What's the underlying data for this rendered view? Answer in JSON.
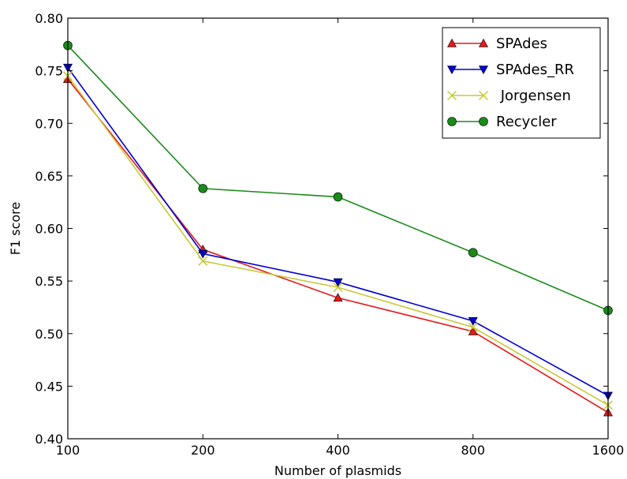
{
  "chart_data": {
    "type": "line",
    "title": "",
    "xlabel": "Number of plasmids",
    "ylabel": "F1 score",
    "x": [
      "100",
      "200",
      "400",
      "800",
      "1600"
    ],
    "ylim": [
      0.4,
      0.8
    ],
    "yticks": [
      "0.40",
      "0.45",
      "0.50",
      "0.55",
      "0.60",
      "0.65",
      "0.70",
      "0.75",
      "0.80"
    ],
    "grid": false,
    "legend_position": "top-right",
    "series": [
      {
        "name": "SPAdes",
        "values": [
          0.742,
          0.58,
          0.534,
          0.502,
          0.425
        ],
        "color": "#e41a1c",
        "marker": "triangle-up"
      },
      {
        "name": "SPAdes_RR",
        "values": [
          0.753,
          0.576,
          0.549,
          0.512,
          0.441
        ],
        "color": "#0000cc",
        "marker": "triangle-down"
      },
      {
        "name": " Jorgensen",
        "values": [
          0.745,
          0.569,
          0.544,
          0.506,
          0.432
        ],
        "color": "#c8c83a",
        "marker": "x"
      },
      {
        "name": "Recycler",
        "values": [
          0.774,
          0.638,
          0.63,
          0.577,
          0.522
        ],
        "color": "#1a8a1a",
        "marker": "circle"
      }
    ]
  }
}
